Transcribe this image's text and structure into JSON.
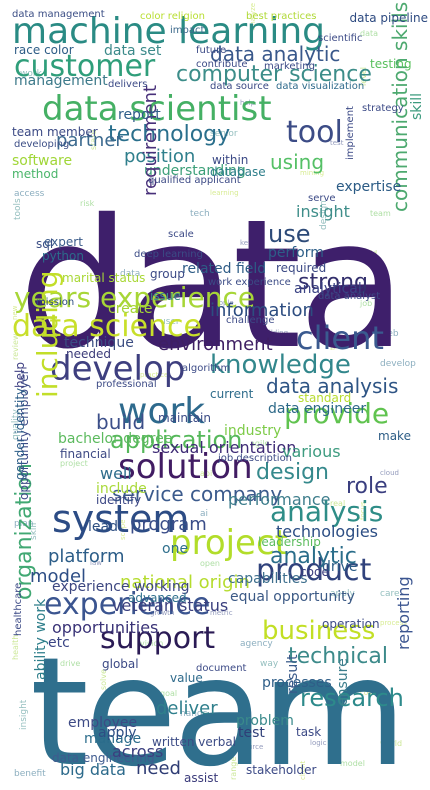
{
  "words": [
    {
      "text": "data",
      "color": "#3e1f6b"
    },
    {
      "text": "team",
      "color": "#2f6f8d"
    },
    {
      "text": "machine learning",
      "color": "#2a8b84"
    },
    {
      "text": "customer",
      "color": "#2f9e7a"
    },
    {
      "text": "data scientist",
      "color": "#45b064"
    },
    {
      "text": "computer science",
      "color": "#3c8d89"
    },
    {
      "text": "data analytic",
      "color": "#39588b"
    },
    {
      "text": "technology",
      "color": "#2a6f8c"
    },
    {
      "text": "tool",
      "color": "#3c4c86"
    },
    {
      "text": "years experience",
      "color": "#a7d637"
    },
    {
      "text": "data science",
      "color": "#c8df2a"
    },
    {
      "text": "develop",
      "color": "#3e3f7f"
    },
    {
      "text": "client",
      "color": "#3a5a8f"
    },
    {
      "text": "knowledge",
      "color": "#32878c"
    },
    {
      "text": "work",
      "color": "#2e6a8d"
    },
    {
      "text": "provide",
      "color": "#60c34f"
    },
    {
      "text": "application",
      "color": "#55b85a"
    },
    {
      "text": "solution",
      "color": "#411c63"
    },
    {
      "text": "system",
      "color": "#2c4c85"
    },
    {
      "text": "analysis",
      "color": "#2e8d87"
    },
    {
      "text": "project",
      "color": "#b2dd2a"
    },
    {
      "text": "product",
      "color": "#30427c"
    },
    {
      "text": "experience",
      "color": "#3b5590"
    },
    {
      "text": "support",
      "color": "#2b1b55"
    },
    {
      "text": "business",
      "color": "#c2df25"
    },
    {
      "text": "research",
      "color": "#2d8a8b"
    },
    {
      "text": "organization",
      "color": "#41a873"
    },
    {
      "text": "including",
      "color": "#c2de29"
    },
    {
      "text": "communication skills",
      "color": "#4da96f"
    },
    {
      "text": "information",
      "color": "#2d4d80"
    },
    {
      "text": "design",
      "color": "#35898c"
    },
    {
      "text": "role",
      "color": "#3a3e7f"
    },
    {
      "text": "analytic",
      "color": "#2a6d8a"
    },
    {
      "text": "service company",
      "color": "#3b5a8c"
    },
    {
      "text": "environment",
      "color": "#3e1f63"
    },
    {
      "text": "position",
      "color": "#2f7f8c"
    },
    {
      "text": "understanding",
      "color": "#3c9f78"
    },
    {
      "text": "using",
      "color": "#55c066"
    },
    {
      "text": "use",
      "color": "#2d4a78"
    },
    {
      "text": "insight",
      "color": "#3f8e8a"
    },
    {
      "text": "requirement",
      "color": "#48307a"
    },
    {
      "text": "partner",
      "color": "#3c6a8f"
    },
    {
      "text": "report",
      "color": "#2e5d89"
    },
    {
      "text": "management",
      "color": "#3d7a8a"
    },
    {
      "text": "software",
      "color": "#a0d637"
    },
    {
      "text": "method",
      "color": "#4ab56a"
    },
    {
      "text": "database",
      "color": "#2d7e8a"
    },
    {
      "text": "expertise",
      "color": "#2b5b85"
    },
    {
      "text": "skill",
      "color": "#3c9b7e"
    },
    {
      "text": "strong",
      "color": "#332f6c"
    },
    {
      "text": "data analysis",
      "color": "#2f5585"
    },
    {
      "text": "build",
      "color": "#3c4f89"
    },
    {
      "text": "technique",
      "color": "#3b4d82"
    },
    {
      "text": "create",
      "color": "#a5d536"
    },
    {
      "text": "bachelor degree",
      "color": "#5cba5e"
    },
    {
      "text": "financial",
      "color": "#3f4b85"
    },
    {
      "text": "industry",
      "color": "#7dcb48"
    },
    {
      "text": "data engineer",
      "color": "#2d6988"
    },
    {
      "text": "analytical",
      "color": "#3b4384"
    },
    {
      "text": "sexual orientation",
      "color": "#3e2b75"
    },
    {
      "text": "well",
      "color": "#2e6c8b"
    },
    {
      "text": "various",
      "color": "#3e9c80"
    },
    {
      "text": "include",
      "color": "#a9d93a"
    },
    {
      "text": "lead",
      "color": "#2e4f82"
    },
    {
      "text": "program",
      "color": "#3a4d88"
    },
    {
      "text": "performance",
      "color": "#3e7e8c"
    },
    {
      "text": "technologies",
      "color": "#2c4e84"
    },
    {
      "text": "platform",
      "color": "#2c5d88"
    },
    {
      "text": "model",
      "color": "#2d4d85"
    },
    {
      "text": "national origin",
      "color": "#b5dc2e"
    },
    {
      "text": "capabilities",
      "color": "#3e6f8d"
    },
    {
      "text": "equal opportunity",
      "color": "#3c5a86"
    },
    {
      "text": "veteran status",
      "color": "#3a3f7e"
    },
    {
      "text": "experience working",
      "color": "#3c4680"
    },
    {
      "text": "technical",
      "color": "#3c8a8a"
    },
    {
      "text": "processes",
      "color": "#2f5e88"
    },
    {
      "text": "opportunities",
      "color": "#3a3377"
    },
    {
      "text": "employee",
      "color": "#3d4a85"
    },
    {
      "text": "deliver",
      "color": "#2f7f8c"
    },
    {
      "text": "problem",
      "color": "#3a8a8b"
    },
    {
      "text": "manage",
      "color": "#2b6c8b"
    },
    {
      "text": "need",
      "color": "#2e3c74"
    },
    {
      "text": "big data",
      "color": "#2c6a8b"
    },
    {
      "text": "data engineering",
      "color": "#3f5b8f"
    },
    {
      "text": "across",
      "color": "#3b3f7f"
    },
    {
      "text": "written verbal",
      "color": "#3b4b85"
    },
    {
      "text": "ensure",
      "color": "#3d7e8c"
    },
    {
      "text": "reporting",
      "color": "#3b5590"
    },
    {
      "text": "ability work",
      "color": "#2d7e8a"
    },
    {
      "text": "opportunity employer",
      "color": "#3c4a86"
    },
    {
      "text": "gender identity",
      "color": "#2d5e88"
    },
    {
      "text": "marital status",
      "color": "#a9d836"
    },
    {
      "text": "sql",
      "color": "#3b4e85"
    },
    {
      "text": "python",
      "color": "#2c6b8a"
    },
    {
      "text": "expert",
      "color": "#3a5b8a"
    },
    {
      "text": "identify",
      "color": "#3b4684"
    },
    {
      "text": "help",
      "color": "#3e3f82"
    },
    {
      "text": "make",
      "color": "#2d5d86"
    },
    {
      "text": "mission",
      "color": "#2d4c82"
    },
    {
      "text": "needed",
      "color": "#3a3a78"
    },
    {
      "text": "advanced",
      "color": "#2f6f8c"
    },
    {
      "text": "developing",
      "color": "#3c4e86"
    },
    {
      "text": "data management",
      "color": "#3b4e85"
    },
    {
      "text": "race color",
      "color": "#2d5c86"
    },
    {
      "text": "data set",
      "color": "#3c8a8a"
    },
    {
      "text": "data pipeline",
      "color": "#2d4a80"
    },
    {
      "text": "color religion",
      "color": "#b8de30"
    },
    {
      "text": "best practices",
      "color": "#b0d936"
    },
    {
      "text": "impact",
      "color": "#3d6a8c"
    },
    {
      "text": "testing",
      "color": "#59c05e"
    },
    {
      "text": "data visualization",
      "color": "#2e6a8b"
    },
    {
      "text": "data source",
      "color": "#3a4884"
    },
    {
      "text": "team member",
      "color": "#3c4a85"
    },
    {
      "text": "qualified applicant",
      "color": "#3c4a85"
    },
    {
      "text": "deep learning",
      "color": "#3b4b85"
    },
    {
      "text": "related field",
      "color": "#2e5c86"
    },
    {
      "text": "work experience",
      "color": "#3b4b85"
    },
    {
      "text": "perform",
      "color": "#2d5e88"
    },
    {
      "text": "required",
      "color": "#3c4a85"
    },
    {
      "text": "data analyst",
      "color": "#3d4a86"
    },
    {
      "text": "issue",
      "color": "#3c8a8a"
    },
    {
      "text": "professional",
      "color": "#3c4a85"
    },
    {
      "text": "standard",
      "color": "#b7db30"
    },
    {
      "text": "current",
      "color": "#2e6c8b"
    },
    {
      "text": "maintain",
      "color": "#3b4b85"
    },
    {
      "text": "job description",
      "color": "#3c4a85"
    },
    {
      "text": "drive",
      "color": "#2c5c86"
    },
    {
      "text": "code",
      "color": "#3a3c7c"
    },
    {
      "text": "one",
      "color": "#2f6f8c"
    },
    {
      "text": "leadership",
      "color": "#5cbc5e"
    },
    {
      "text": "etc",
      "color": "#3a4484"
    },
    {
      "text": "global",
      "color": "#3c4a86"
    },
    {
      "text": "value",
      "color": "#2e6a8b"
    },
    {
      "text": "operation",
      "color": "#3c4a86"
    },
    {
      "text": "document",
      "color": "#3c4a86"
    },
    {
      "text": "apply",
      "color": "#2e4e84"
    },
    {
      "text": "test",
      "color": "#2f3f78"
    },
    {
      "text": "task",
      "color": "#3c4a86"
    },
    {
      "text": "result",
      "color": "#3a5a8a"
    },
    {
      "text": "assist",
      "color": "#3a3a7a"
    },
    {
      "text": "stakeholder",
      "color": "#3c4a86"
    },
    {
      "text": "future",
      "color": "#3c4a86"
    },
    {
      "text": "contribute",
      "color": "#3c4a86"
    },
    {
      "text": "marketing",
      "color": "#3c4a86"
    },
    {
      "text": "scientific",
      "color": "#3c4a86"
    },
    {
      "text": "strategy",
      "color": "#3c4a86"
    },
    {
      "text": "healthcare",
      "color": "#3c4a86"
    },
    {
      "text": "scale",
      "color": "#3c4a86"
    },
    {
      "text": "algorithm",
      "color": "#3c4a86"
    },
    {
      "text": "within",
      "color": "#3c4a86"
    },
    {
      "text": "implement",
      "color": "#3c4a86"
    },
    {
      "text": "serve",
      "color": "#3c4a86"
    },
    {
      "text": "delivers",
      "color": "#3c4a86"
    },
    {
      "text": "group",
      "color": "#3c4a86"
    },
    {
      "text": "challenge",
      "color": "#3c4a86"
    }
  ],
  "noise_words": [
    "analyze",
    "data",
    "work",
    "help",
    "level",
    "access",
    "learning",
    "team",
    "tools",
    "key",
    "field",
    "data",
    "new",
    "job",
    "user",
    "building",
    "review",
    "develop",
    "practice",
    "agile",
    "quality",
    "cloud",
    "api",
    "plan",
    "focus",
    "open",
    "care",
    "growth",
    "health",
    "agency",
    "process",
    "goal",
    "insight",
    "source",
    "world",
    "benefit",
    "client",
    "model",
    "senior",
    "test",
    "state",
    "tech",
    "mining",
    "risk",
    "design",
    "people",
    "tool",
    "web",
    "time",
    "project",
    "apply",
    "metric",
    "solve",
    "hands",
    "cost",
    "vision",
    "skill",
    "law",
    "real",
    "ai",
    "scope",
    "drive",
    "way",
    "logic",
    "range"
  ]
}
